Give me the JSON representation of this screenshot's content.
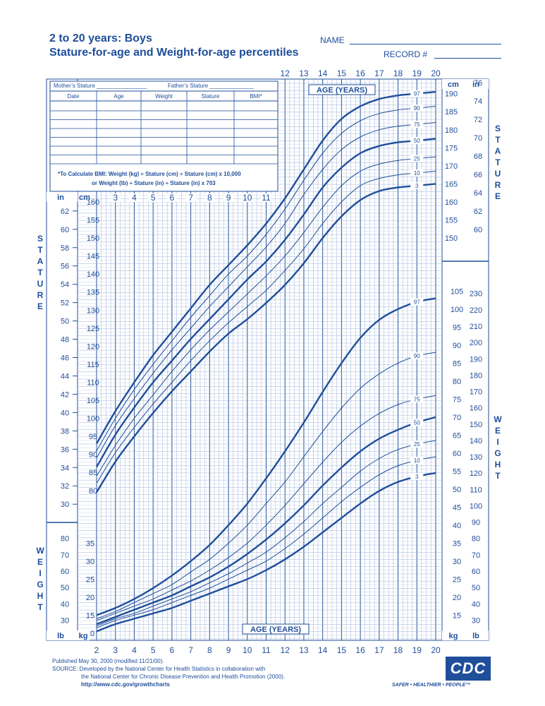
{
  "header": {
    "title_line1": "2 to 20 years: Boys",
    "title_line2": "Stature-for-age and Weight-for-age percentiles",
    "name_label": "NAME",
    "record_label": "RECORD #"
  },
  "record_table": {
    "mother_label": "Mother’s Stature",
    "father_label": "Father’s Stature",
    "columns": [
      "Date",
      "Age",
      "Weight",
      "Stature",
      "BMI*"
    ],
    "bmi_note_line1": "*To Calculate BMI: Weight (kg) ÷ Stature (cm) ÷ Stature (cm) x 10,000",
    "bmi_note_line2": "or Weight (lb) ÷ Stature (in) ÷ Stature (in) x 703"
  },
  "footer": {
    "published": "Published May 30, 2000 (modified 11/21/00).",
    "source_line1": "SOURCE: Developed by the National Center for Health Statistics in collaboration with",
    "source_line2": "the National Center for Chronic Disease Prevention and Health Promotion (2000).",
    "url": "http://www.cdc.gov/growthcharts",
    "logo_text": "CDC",
    "tagline": "SAFER • HEALTHIER • PEOPLE™"
  },
  "colors": {
    "ink": "#1f4e9a",
    "grid_light": "#9db3d8",
    "background": "#ffffff"
  },
  "chart_data": [
    {
      "type": "line",
      "title": "Stature-for-age",
      "xlabel": "AGE (YEARS)",
      "ylabel": "STATURE",
      "xlim": [
        2,
        20
      ],
      "ylim_cm": [
        77,
        196
      ],
      "x": [
        2,
        3,
        4,
        5,
        6,
        7,
        8,
        9,
        10,
        11,
        12,
        13,
        14,
        15,
        16,
        17,
        18,
        19,
        20
      ],
      "x_ticks": [
        "2",
        "3",
        "4",
        "5",
        "6",
        "7",
        "8",
        "9",
        "10",
        "11",
        "12",
        "13",
        "14",
        "15",
        "16",
        "17",
        "18",
        "19",
        "20"
      ],
      "y_ticks_cm_left": [
        80,
        85,
        90,
        95,
        100,
        105,
        110,
        115,
        120,
        125,
        130,
        135,
        140,
        145,
        150,
        155,
        160
      ],
      "y_ticks_in_left": [
        30,
        32,
        34,
        36,
        38,
        40,
        42,
        44,
        46,
        48,
        50,
        52,
        54,
        56,
        58,
        60,
        62
      ],
      "y_ticks_cm_right": [
        150,
        155,
        160,
        165,
        170,
        175,
        180,
        185,
        190
      ],
      "y_ticks_in_right": [
        60,
        62,
        64,
        66,
        68,
        70,
        72,
        74,
        76
      ],
      "unit_labels": {
        "cm": "cm",
        "in": "in"
      },
      "series": [
        {
          "name": "97",
          "values": [
            93,
            102,
            110,
            117.5,
            124,
            130.5,
            137,
            142.5,
            148,
            154,
            161,
            169,
            177,
            183,
            186.5,
            188.5,
            189.5,
            190,
            190.5
          ]
        },
        {
          "name": "90",
          "values": [
            91,
            100,
            108,
            115,
            121.5,
            128,
            134,
            140,
            145,
            151,
            158,
            166,
            173.5,
            179,
            182.5,
            184.5,
            185.5,
            186,
            186.5
          ]
        },
        {
          "name": "75",
          "values": [
            89,
            98,
            105.5,
            112.5,
            119,
            125,
            131,
            136.5,
            142,
            147.5,
            154,
            162,
            169,
            174.5,
            178,
            180,
            181,
            181.5,
            182
          ]
        },
        {
          "name": "50",
          "values": [
            86.5,
            95.5,
            103,
            110,
            116,
            122,
            127.5,
            133,
            138.5,
            143.5,
            149.5,
            156.5,
            164,
            169.5,
            173.5,
            175.5,
            176.5,
            177,
            177.5
          ]
        },
        {
          "name": "25",
          "values": [
            84,
            92.5,
            100,
            106.5,
            113,
            119,
            124.5,
            129.5,
            134.5,
            139.5,
            145,
            151.5,
            158.5,
            164.5,
            168.5,
            170.5,
            171.5,
            172,
            172.5
          ]
        },
        {
          "name": "10",
          "values": [
            82,
            90.5,
            97.5,
            104,
            110,
            116,
            121.5,
            126.5,
            131,
            135.5,
            141,
            147,
            154,
            160,
            164.5,
            166.5,
            167.5,
            168,
            168.5
          ]
        },
        {
          "name": "3",
          "values": [
            79.5,
            88,
            95,
            101.5,
            107.5,
            113,
            118.5,
            123.5,
            127.5,
            132,
            137,
            143,
            150,
            156,
            160.5,
            163,
            164,
            164.5,
            165
          ]
        }
      ]
    },
    {
      "type": "line",
      "title": "Weight-for-age",
      "xlabel": "AGE (YEARS)",
      "ylabel": "WEIGHT",
      "xlim": [
        2,
        20
      ],
      "ylim_kg": [
        8,
        108
      ],
      "x": [
        2,
        3,
        4,
        5,
        6,
        7,
        8,
        9,
        10,
        11,
        12,
        13,
        14,
        15,
        16,
        17,
        18,
        19,
        20
      ],
      "y_ticks_kg_left": [
        10,
        15,
        20,
        25,
        30,
        35
      ],
      "y_ticks_lb_left": [
        30,
        40,
        50,
        60,
        70,
        80
      ],
      "y_ticks_kg_right": [
        10,
        15,
        20,
        25,
        30,
        35,
        40,
        45,
        50,
        55,
        60,
        65,
        70,
        75,
        80,
        85,
        90,
        95,
        100,
        105
      ],
      "y_ticks_lb_right": [
        30,
        40,
        50,
        60,
        70,
        80,
        90,
        100,
        110,
        120,
        130,
        140,
        150,
        160,
        170,
        180,
        190,
        200,
        210,
        220,
        230
      ],
      "unit_labels": {
        "kg": "kg",
        "lb": "lb"
      },
      "series": [
        {
          "name": "97",
          "values": [
            15,
            17,
            19.5,
            22.5,
            26,
            30,
            34.5,
            40,
            46,
            53,
            60.5,
            68.5,
            77,
            85,
            92,
            97,
            100,
            102,
            103
          ]
        },
        {
          "name": "90",
          "values": [
            14,
            16,
            18.5,
            21,
            23.5,
            27,
            30.5,
            35,
            40,
            46,
            52,
            59,
            66,
            72.5,
            78,
            82,
            85,
            87,
            88
          ]
        },
        {
          "name": "75",
          "values": [
            13.5,
            15.5,
            17.5,
            19.5,
            22,
            24.5,
            27.5,
            31,
            35,
            40,
            45.5,
            51.5,
            57.5,
            63,
            67.5,
            71,
            73.5,
            75,
            76
          ]
        },
        {
          "name": "50",
          "values": [
            12.5,
            14.5,
            16.5,
            18.5,
            20.5,
            23,
            25.5,
            28.5,
            32,
            36,
            40.5,
            45.5,
            51,
            56,
            60.5,
            64,
            66.5,
            68.5,
            70
          ]
        },
        {
          "name": "25",
          "values": [
            12,
            14,
            15.5,
            17.5,
            19.5,
            21.5,
            24,
            26.5,
            29.5,
            32.5,
            36.5,
            41,
            46,
            50.5,
            55,
            58.5,
            61,
            62.5,
            63.5
          ]
        },
        {
          "name": "10",
          "values": [
            11.5,
            13.5,
            15,
            16.5,
            18.5,
            20.5,
            22.5,
            25,
            27.5,
            30,
            33.5,
            37.5,
            42,
            46.5,
            50.5,
            54,
            56.5,
            58,
            59
          ]
        },
        {
          "name": "3",
          "values": [
            10.5,
            12.5,
            14,
            15.5,
            17,
            19,
            21,
            23,
            25,
            27.5,
            30.5,
            34,
            38,
            42,
            46,
            49.5,
            52,
            53.5,
            54.5
          ]
        }
      ]
    }
  ]
}
